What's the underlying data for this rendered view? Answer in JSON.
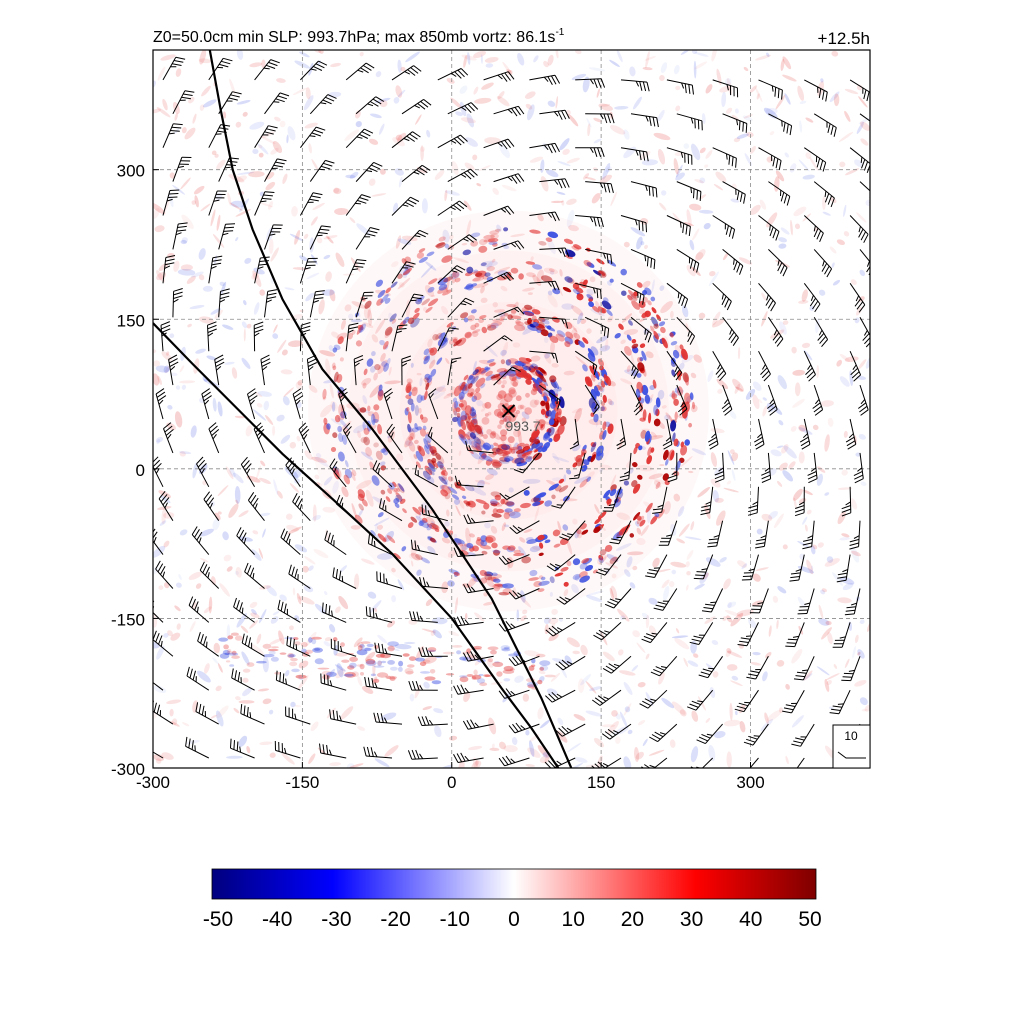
{
  "chart_data": {
    "type": "heatmap",
    "title": {
      "main": "Z0=50.0cm  min SLP: 993.7hPa; max 850mb vortz:  86.1s",
      "superscript": "-1",
      "right": "+12.5h"
    },
    "xlabel": "",
    "ylabel": "",
    "xlim": [
      -300,
      420
    ],
    "ylim": [
      -300,
      420
    ],
    "x_ticks": [
      -300,
      -150,
      0,
      150,
      300
    ],
    "y_ticks": [
      -300,
      -150,
      0,
      150,
      300
    ],
    "x_tick_labels": [
      "-300",
      "-150",
      "0",
      "150",
      "300"
    ],
    "y_tick_labels": [
      "-300",
      "-150",
      "0",
      "150",
      "300"
    ],
    "grid": true,
    "center_marker": {
      "x": 57,
      "y": 58,
      "label": "993.7"
    },
    "barb_reference": {
      "label": "10"
    },
    "rings": [
      {
        "radius": 45
      },
      {
        "radius": 95
      },
      {
        "radius": 140
      },
      {
        "radius": 175
      }
    ],
    "boundary_lines": [
      {
        "x": [
          -243,
          -232,
          -220,
          -200,
          -170,
          -130,
          -80,
          -20,
          40,
          90,
          120
        ],
        "y": [
          420,
          360,
          300,
          240,
          170,
          100,
          40,
          -40,
          -130,
          -230,
          -300
        ]
      },
      {
        "x": [
          -300,
          -260,
          -215,
          -170,
          -120,
          -60,
          0,
          50,
          80,
          107
        ],
        "y": [
          146,
          105,
          60,
          15,
          -30,
          -85,
          -150,
          -220,
          -260,
          -300
        ]
      }
    ],
    "colorbar": {
      "ticks": [
        -50,
        -40,
        -30,
        -20,
        -10,
        0,
        10,
        20,
        30,
        40,
        50
      ],
      "tick_labels": [
        "-50",
        "-40",
        "-30",
        "-20",
        "-10",
        "0",
        "10",
        "20",
        "30",
        "40",
        "50"
      ],
      "colors": [
        "#00007f",
        "#0000ff",
        "#ffffff",
        "#ff0000",
        "#7f0000"
      ]
    },
    "colors": {
      "positive": "#e0302f",
      "negative": "#3a4ee0",
      "barb": "#000000",
      "boundary": "#000000",
      "grid": "#8a8a8a"
    }
  }
}
